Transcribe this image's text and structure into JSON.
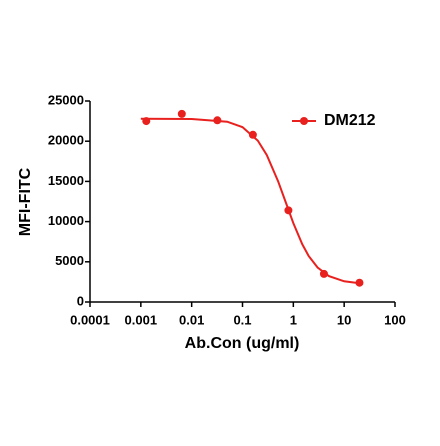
{
  "chart_data": {
    "type": "scatter",
    "x_label": "Ab.Con (ug/ml)",
    "y_label": "MFI-FITC",
    "xscale": "log",
    "x": [
      0.00128,
      0.0064,
      0.032,
      0.16,
      0.8,
      4,
      20
    ],
    "series": [
      {
        "name": "DM212",
        "color": "#e8211f",
        "values": [
          22500,
          23400,
          22600,
          20800,
          11400,
          3500,
          2400
        ]
      }
    ],
    "curve": {
      "x": [
        0.001,
        0.01,
        0.05,
        0.1,
        0.2,
        0.3,
        0.5,
        0.7,
        1,
        1.5,
        2,
        3,
        5,
        10,
        20
      ],
      "values": [
        22800,
        22760,
        22420,
        21750,
        20070,
        18290,
        15040,
        12500,
        9810,
        7180,
        5730,
        4290,
        3225,
        2575,
        2335
      ]
    },
    "xlim": [
      0.0001,
      100
    ],
    "xticks": [
      0.0001,
      0.001,
      0.01,
      0.1,
      1,
      10,
      100
    ],
    "ylim": [
      0,
      25000
    ],
    "yticks": [
      0,
      5000,
      10000,
      15000,
      20000,
      25000
    ],
    "legend": "top-right"
  }
}
